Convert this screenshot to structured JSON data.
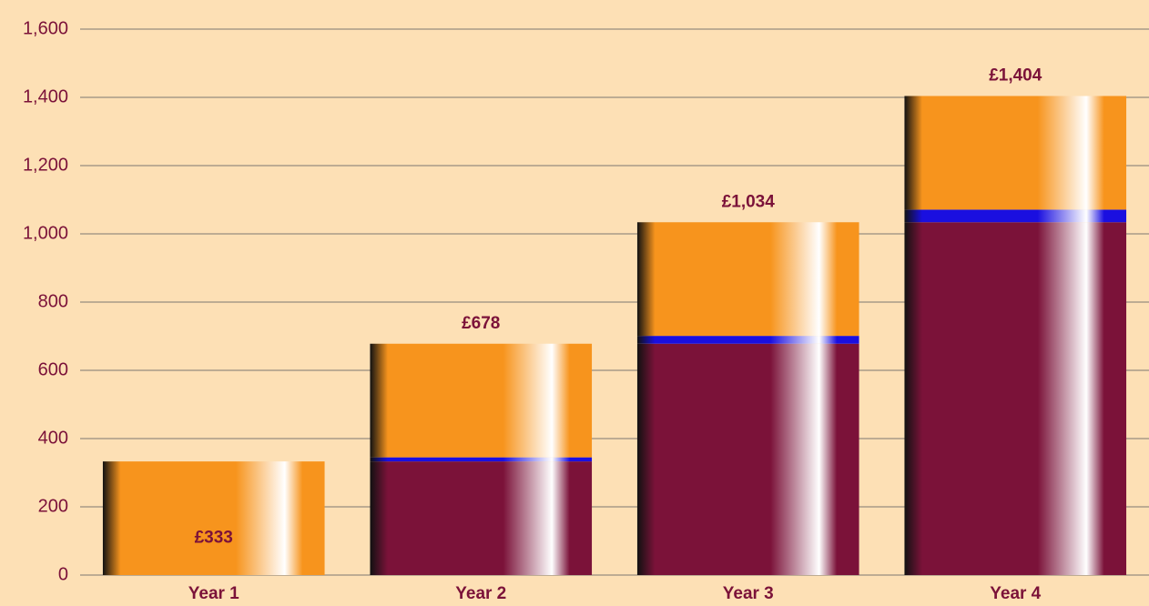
{
  "chart_data": {
    "type": "stacked_bar",
    "categories": [
      "Year 1",
      "Year 2",
      "Year 3",
      "Year 4"
    ],
    "series": [
      {
        "color": "#7b1239",
        "values": [
          0,
          333,
          678,
          1034
        ]
      },
      {
        "color": "#1a0fe0",
        "values": [
          0,
          12,
          23,
          37
        ]
      },
      {
        "color": "#f7941d",
        "values": [
          333,
          333,
          333,
          333
        ]
      }
    ],
    "totals": [
      333,
      678,
      1034,
      1404
    ],
    "total_labels": [
      "£333",
      "£678",
      "£1,034",
      "£1,404"
    ],
    "ylim": [
      0,
      1600
    ],
    "yticks": [
      0,
      200,
      400,
      600,
      800,
      {
        "value": 1000,
        "label": "1,000"
      },
      {
        "value": 1200,
        "label": "1,200"
      },
      {
        "value": 1400,
        "label": "1,400"
      },
      {
        "value": 1600,
        "label": "1,600"
      }
    ],
    "grid": true
  }
}
